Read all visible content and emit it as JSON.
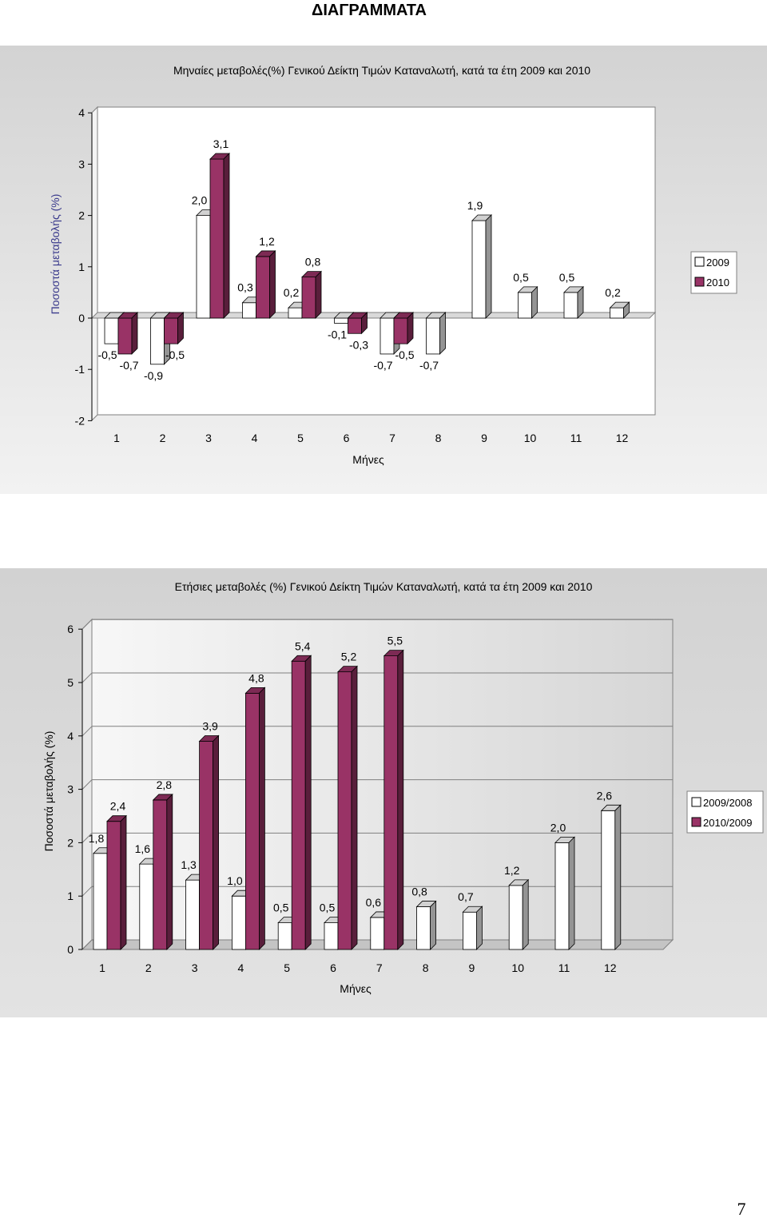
{
  "page": {
    "title": "ΔΙΑΓΡΑΜΜΑΤΑ",
    "page_number": "7"
  },
  "chart_data": [
    {
      "type": "bar",
      "title": "Μηναίες μεταβολές(%) Γενικού Δείκτη Τιμών Καταναλωτή, κατά τα έτη 2009 και 2010",
      "xlabel": "Μήνες",
      "ylabel": "Ποσοστά μεταβολής (%)",
      "categories": [
        "1",
        "2",
        "3",
        "4",
        "5",
        "6",
        "7",
        "8",
        "9",
        "10",
        "11",
        "12"
      ],
      "ylim": [
        -2,
        4
      ],
      "yticks": [
        -2,
        -1,
        0,
        1,
        2,
        3,
        4
      ],
      "grid": false,
      "legend": "right",
      "series": [
        {
          "name": "2009",
          "color": "#ffffff",
          "values": [
            -0.5,
            -0.9,
            2.0,
            0.3,
            0.2,
            -0.1,
            -0.7,
            -0.7,
            1.9,
            0.5,
            0.5,
            0.2
          ],
          "labels": [
            "-0,5",
            "-0,9",
            "2,0",
            "0,3",
            "0,2",
            "-0,1",
            "-0,7",
            "-0,7",
            "1,9",
            "0,5",
            "0,5",
            "0,2"
          ]
        },
        {
          "name": "2010",
          "color": "#993366",
          "values": [
            -0.7,
            -0.5,
            3.1,
            1.2,
            0.8,
            -0.3,
            -0.5,
            null,
            null,
            null,
            null,
            null
          ],
          "labels": [
            "-0,7",
            "-0,5",
            "3,1",
            "1,2",
            "0,8",
            "-0,3",
            "-0,5",
            null,
            null,
            null,
            null,
            null
          ]
        }
      ]
    },
    {
      "type": "bar",
      "title": "Ετήσιες μεταβολές (%) Γενικού Δείκτη Τιμών Καταναλωτή, κατά τα έτη 2009 και 2010",
      "xlabel": "Μήνες",
      "ylabel": "Ποσοστά μεταβολής (%)",
      "categories": [
        "1",
        "2",
        "3",
        "4",
        "5",
        "6",
        "7",
        "8",
        "9",
        "10",
        "11",
        "12"
      ],
      "ylim": [
        0,
        6
      ],
      "yticks": [
        0,
        1,
        2,
        3,
        4,
        5,
        6
      ],
      "grid": true,
      "legend": "right",
      "series": [
        {
          "name": "2009/2008",
          "color": "#ffffff",
          "values": [
            1.8,
            1.6,
            1.3,
            1.0,
            0.5,
            0.5,
            0.6,
            0.8,
            0.7,
            1.2,
            2.0,
            2.6
          ],
          "labels": [
            "1,8",
            "1,6",
            "1,3",
            "1,0",
            "0,5",
            "0,5",
            "0,6",
            "0,8",
            "0,7",
            "1,2",
            "2,0",
            "2,6"
          ]
        },
        {
          "name": "2010/2009",
          "color": "#993366",
          "values": [
            2.4,
            2.8,
            3.9,
            4.8,
            5.4,
            5.2,
            5.5,
            null,
            null,
            null,
            null,
            null
          ],
          "labels": [
            "2,4",
            "2,8",
            "3,9",
            "4,8",
            "5,4",
            "5,2",
            "5,5",
            null,
            null,
            null,
            null,
            null
          ]
        }
      ]
    }
  ]
}
